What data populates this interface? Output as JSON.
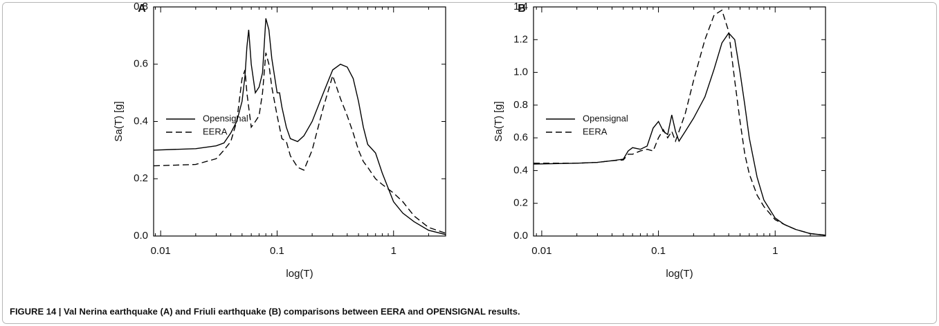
{
  "caption": "FIGURE 14 | Val Nerina earthquake (A) and Friuli earthquake (B) comparisons between EERA and OPENSIGNAL results.",
  "chart_data": [
    {
      "type": "line",
      "label": "A",
      "x_label": "log(T)",
      "y_label": "Sa(T) [g]",
      "xscale": "log",
      "legend": "left",
      "x": [
        0.0087,
        0.02,
        0.03,
        0.035,
        0.04,
        0.045,
        0.05,
        0.053,
        0.055,
        0.057,
        0.06,
        0.065,
        0.07,
        0.075,
        0.08,
        0.085,
        0.09,
        0.1,
        0.105,
        0.11,
        0.12,
        0.13,
        0.15,
        0.17,
        0.2,
        0.25,
        0.3,
        0.35,
        0.4,
        0.45,
        0.5,
        0.55,
        0.6,
        0.7,
        0.8,
        1,
        1.2,
        1.5,
        2,
        2.8
      ],
      "series": [
        {
          "name": "Opensignal",
          "color": "#000000",
          "linestyle": "solid",
          "values": [
            0.3,
            0.305,
            0.315,
            0.325,
            0.36,
            0.4,
            0.47,
            0.56,
            0.66,
            0.72,
            0.6,
            0.5,
            0.52,
            0.57,
            0.76,
            0.72,
            0.62,
            0.5,
            0.5,
            0.45,
            0.38,
            0.34,
            0.33,
            0.35,
            0.4,
            0.5,
            0.58,
            0.6,
            0.59,
            0.55,
            0.47,
            0.38,
            0.32,
            0.29,
            0.22,
            0.12,
            0.08,
            0.05,
            0.02,
            0.005
          ]
        },
        {
          "name": "EERA",
          "color": "#000000",
          "linestyle": "dashed",
          "values": [
            0.245,
            0.25,
            0.27,
            0.3,
            0.33,
            0.4,
            0.55,
            0.58,
            0.5,
            0.45,
            0.38,
            0.4,
            0.42,
            0.5,
            0.64,
            0.6,
            0.52,
            0.42,
            0.38,
            0.34,
            0.33,
            0.28,
            0.24,
            0.23,
            0.3,
            0.45,
            0.56,
            0.48,
            0.42,
            0.36,
            0.3,
            0.26,
            0.24,
            0.2,
            0.18,
            0.15,
            0.12,
            0.07,
            0.03,
            0.01
          ]
        }
      ],
      "xlim": [
        0.0087,
        2.8
      ],
      "xticks": [
        0.01,
        0.1,
        1
      ],
      "ylim": [
        0,
        0.8
      ],
      "yticks": [
        {
          "value": 0,
          "label": "0.0"
        },
        0.2,
        0.4,
        0.6,
        0.8
      ]
    },
    {
      "type": "line",
      "label": "B",
      "x_label": "log(T)",
      "y_label": "Sa(T) [g]",
      "xscale": "log",
      "legend": "left",
      "x": [
        0.0085,
        0.02,
        0.03,
        0.04,
        0.05,
        0.055,
        0.06,
        0.07,
        0.08,
        0.09,
        0.1,
        0.11,
        0.12,
        0.13,
        0.14,
        0.15,
        0.17,
        0.2,
        0.25,
        0.3,
        0.35,
        0.4,
        0.45,
        0.5,
        0.55,
        0.6,
        0.7,
        0.8,
        1,
        1.2,
        1.5,
        2,
        2.7
      ],
      "series": [
        {
          "name": "Opensignal",
          "color": "#000000",
          "linestyle": "solid",
          "values": [
            0.44,
            0.445,
            0.45,
            0.46,
            0.47,
            0.52,
            0.54,
            0.53,
            0.55,
            0.66,
            0.7,
            0.64,
            0.62,
            0.74,
            0.64,
            0.58,
            0.64,
            0.72,
            0.85,
            1.02,
            1.18,
            1.24,
            1.2,
            1.0,
            0.8,
            0.6,
            0.36,
            0.22,
            0.11,
            0.07,
            0.04,
            0.015,
            0.005
          ]
        },
        {
          "name": "EERA",
          "color": "#000000",
          "linestyle": "dashed",
          "values": [
            0.445,
            0.445,
            0.45,
            0.46,
            0.465,
            0.5,
            0.5,
            0.52,
            0.53,
            0.52,
            0.6,
            0.65,
            0.6,
            0.64,
            0.58,
            0.64,
            0.75,
            0.95,
            1.2,
            1.35,
            1.38,
            1.25,
            0.95,
            0.7,
            0.5,
            0.38,
            0.25,
            0.18,
            0.1,
            0.07,
            0.04,
            0.015,
            0.005
          ]
        }
      ],
      "xlim": [
        0.0085,
        2.7
      ],
      "xticks": [
        0.01,
        0.1,
        1
      ],
      "ylim": [
        0,
        1.4
      ],
      "yticks": [
        {
          "value": 0,
          "label": "0.0"
        },
        0.2,
        0.4,
        0.6,
        0.8,
        {
          "value": 1,
          "label": "1.0"
        },
        1.2,
        1.4
      ]
    }
  ]
}
